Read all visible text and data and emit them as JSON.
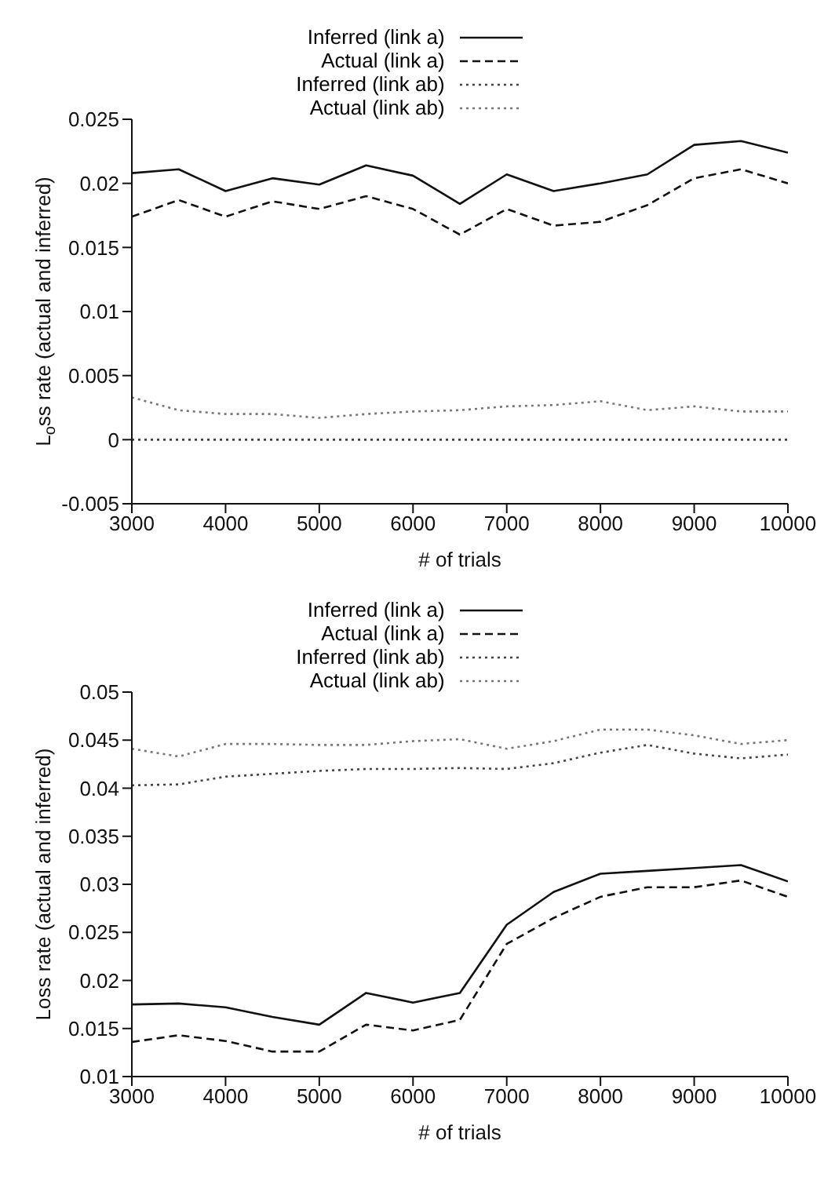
{
  "chart_data": [
    {
      "type": "line",
      "xlabel": "# of trials",
      "ylabel": "L$_{o}$ss rate (actual and inferred)",
      "x": [
        3000,
        3500,
        4000,
        4500,
        5000,
        5500,
        6000,
        6500,
        7000,
        7500,
        8000,
        8500,
        9000,
        9500,
        10000
      ],
      "xlim": [
        3000,
        10000
      ],
      "xticks": [
        3000,
        4000,
        5000,
        6000,
        7000,
        8000,
        9000,
        10000
      ],
      "ylim": [
        -0.005,
        0.025
      ],
      "yticks": [
        -0.005,
        0,
        0.005,
        0.01,
        0.015,
        0.02,
        0.025
      ],
      "grid": false,
      "legend": "top",
      "marker": "none",
      "series": [
        {
          "name": "Inferred (link a)",
          "color": "#111111",
          "line_style": "solid",
          "values": [
            0.0208,
            0.0211,
            0.0194,
            0.0204,
            0.0199,
            0.0214,
            0.0206,
            0.0184,
            0.0207,
            0.0194,
            0.02,
            0.0207,
            0.023,
            0.0233,
            0.0224
          ]
        },
        {
          "name": "Actual (link a)",
          "color": "#111111",
          "line_style": "dashed",
          "values": [
            0.0174,
            0.0187,
            0.0174,
            0.0186,
            0.018,
            0.019,
            0.018,
            0.016,
            0.018,
            0.0167,
            0.017,
            0.0183,
            0.0204,
            0.0211,
            0.02
          ]
        },
        {
          "name": "Inferred (link ab)",
          "color": "#444444",
          "line_style": "dotted",
          "values": [
            0,
            0,
            0,
            0,
            0,
            0,
            0,
            0,
            0,
            0,
            0,
            0,
            0,
            0,
            0
          ]
        },
        {
          "name": "Actual (link ab)",
          "color": "#777777",
          "line_style": "dotted",
          "values": [
            0.0033,
            0.0023,
            0.002,
            0.002,
            0.0017,
            0.002,
            0.0022,
            0.0023,
            0.0026,
            0.0027,
            0.003,
            0.0023,
            0.0026,
            0.0022,
            0.0022
          ]
        }
      ]
    },
    {
      "type": "line",
      "xlabel": "# of trials",
      "ylabel": "Loss rate (actual and inferred)",
      "x": [
        3000,
        3500,
        4000,
        4500,
        5000,
        5500,
        6000,
        6500,
        7000,
        7500,
        8000,
        8500,
        9000,
        9500,
        10000
      ],
      "xlim": [
        3000,
        10000
      ],
      "xticks": [
        3000,
        4000,
        5000,
        6000,
        7000,
        8000,
        9000,
        10000
      ],
      "ylim": [
        0.01,
        0.05
      ],
      "yticks": [
        0.01,
        0.015,
        0.02,
        0.025,
        0.03,
        0.035,
        0.04,
        0.045,
        0.05
      ],
      "grid": false,
      "legend": "top",
      "marker": "none",
      "series": [
        {
          "name": "Inferred (link a)",
          "color": "#111111",
          "line_style": "solid",
          "values": [
            0.0175,
            0.0176,
            0.0172,
            0.0162,
            0.0154,
            0.0187,
            0.0177,
            0.0187,
            0.0258,
            0.0292,
            0.0311,
            0.0314,
            0.0317,
            0.032,
            0.0303
          ]
        },
        {
          "name": "Actual (link a)",
          "color": "#111111",
          "line_style": "dashed",
          "values": [
            0.0136,
            0.0143,
            0.0137,
            0.0126,
            0.0126,
            0.0154,
            0.0148,
            0.0159,
            0.0238,
            0.0265,
            0.0287,
            0.0297,
            0.0297,
            0.0304,
            0.0287
          ]
        },
        {
          "name": "Inferred (link ab)",
          "color": "#444444",
          "line_style": "dotted",
          "values": [
            0.0403,
            0.0404,
            0.0412,
            0.0415,
            0.0418,
            0.042,
            0.042,
            0.0421,
            0.042,
            0.0426,
            0.0437,
            0.0445,
            0.0436,
            0.0431,
            0.0435
          ]
        },
        {
          "name": "Actual (link ab)",
          "color": "#777777",
          "line_style": "dotted",
          "values": [
            0.0441,
            0.0433,
            0.0446,
            0.0446,
            0.0445,
            0.0445,
            0.0449,
            0.0451,
            0.0441,
            0.0449,
            0.0461,
            0.0461,
            0.0455,
            0.0446,
            0.045
          ]
        }
      ]
    }
  ]
}
